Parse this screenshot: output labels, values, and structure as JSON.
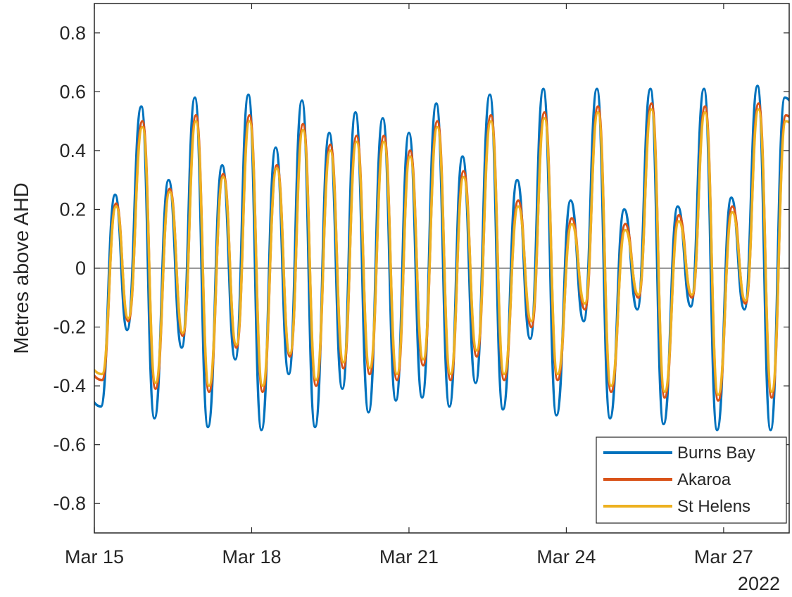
{
  "chart_data": {
    "type": "line",
    "ylabel": "Metres above AHD",
    "xlabel": "",
    "ylim": [
      -0.9,
      0.9
    ],
    "yticks": [
      -0.8,
      -0.6,
      -0.4,
      -0.2,
      0,
      0.2,
      0.4,
      0.6,
      0.8
    ],
    "ytick_labels": [
      "-0.8",
      "-0.6",
      "-0.4",
      "-0.2",
      "0",
      "0.2",
      "0.4",
      "0.6",
      "0.8"
    ],
    "xlim": [
      "2022-03-15T00:00",
      "2022-03-28T06:00"
    ],
    "xticks": [
      "2022-03-15",
      "2022-03-18",
      "2022-03-21",
      "2022-03-24",
      "2022-03-27"
    ],
    "xtick_labels": [
      "Mar 15",
      "Mar 18",
      "Mar 21",
      "Mar 24",
      "Mar 27"
    ],
    "year_label": "2022",
    "zero_line": true,
    "grid": false,
    "legend_position": "bottom-right",
    "series": [
      {
        "name": "Burns Bay",
        "color": "#0072BD",
        "x": [
          "2022-03-15T03:00",
          "2022-03-15T09:30",
          "2022-03-15T15:00",
          "2022-03-15T21:30",
          "2022-03-16T03:30",
          "2022-03-16T10:00",
          "2022-03-16T16:00",
          "2022-03-16T22:00",
          "2022-03-17T04:00",
          "2022-03-17T10:30",
          "2022-03-17T16:30",
          "2022-03-17T22:30",
          "2022-03-18T04:30",
          "2022-03-18T11:00",
          "2022-03-18T17:00",
          "2022-03-18T23:00",
          "2022-03-19T05:00",
          "2022-03-19T11:30",
          "2022-03-19T17:30",
          "2022-03-19T23:30",
          "2022-03-20T05:30",
          "2022-03-20T12:00",
          "2022-03-20T18:00",
          "2022-03-21T00:00",
          "2022-03-21T06:00",
          "2022-03-21T12:30",
          "2022-03-21T18:30",
          "2022-03-22T00:30",
          "2022-03-22T06:30",
          "2022-03-22T13:00",
          "2022-03-22T19:00",
          "2022-03-23T01:30",
          "2022-03-23T07:30",
          "2022-03-23T13:30",
          "2022-03-23T19:30",
          "2022-03-24T02:00",
          "2022-03-24T08:00",
          "2022-03-24T14:00",
          "2022-03-24T20:00",
          "2022-03-25T02:30",
          "2022-03-25T08:30",
          "2022-03-25T14:30",
          "2022-03-25T20:30",
          "2022-03-26T03:00",
          "2022-03-26T09:00",
          "2022-03-26T15:00",
          "2022-03-26T21:00",
          "2022-03-27T03:30",
          "2022-03-27T09:30",
          "2022-03-27T15:30",
          "2022-03-27T21:30",
          "2022-03-28T04:00"
        ],
        "y": [
          -0.47,
          0.25,
          -0.21,
          0.55,
          -0.51,
          0.3,
          -0.27,
          0.58,
          -0.54,
          0.35,
          -0.31,
          0.59,
          -0.55,
          0.41,
          -0.36,
          0.57,
          -0.54,
          0.46,
          -0.41,
          0.53,
          -0.49,
          0.51,
          -0.45,
          0.46,
          -0.44,
          0.56,
          -0.47,
          0.38,
          -0.39,
          0.59,
          -0.48,
          0.3,
          -0.24,
          0.61,
          -0.5,
          0.23,
          -0.18,
          0.61,
          -0.51,
          0.2,
          -0.14,
          0.61,
          -0.53,
          0.21,
          -0.13,
          0.61,
          -0.55,
          0.24,
          -0.14,
          0.62,
          -0.55,
          0.58
        ]
      },
      {
        "name": "Akaroa",
        "color": "#D95319",
        "x": [
          "2022-03-15T03:30",
          "2022-03-15T10:00",
          "2022-03-15T15:30",
          "2022-03-15T22:00",
          "2022-03-16T04:00",
          "2022-03-16T10:30",
          "2022-03-16T16:30",
          "2022-03-16T22:30",
          "2022-03-17T04:30",
          "2022-03-17T11:00",
          "2022-03-17T17:00",
          "2022-03-17T23:00",
          "2022-03-18T05:00",
          "2022-03-18T11:30",
          "2022-03-18T17:30",
          "2022-03-18T23:30",
          "2022-03-19T05:30",
          "2022-03-19T12:00",
          "2022-03-19T18:00",
          "2022-03-20T00:00",
          "2022-03-20T06:00",
          "2022-03-20T12:30",
          "2022-03-20T18:30",
          "2022-03-21T00:30",
          "2022-03-21T06:30",
          "2022-03-21T13:00",
          "2022-03-21T19:00",
          "2022-03-22T01:00",
          "2022-03-22T07:00",
          "2022-03-22T13:30",
          "2022-03-22T19:30",
          "2022-03-23T02:00",
          "2022-03-23T08:00",
          "2022-03-23T14:00",
          "2022-03-23T20:00",
          "2022-03-24T02:30",
          "2022-03-24T08:30",
          "2022-03-24T14:30",
          "2022-03-24T20:30",
          "2022-03-25T03:00",
          "2022-03-25T09:00",
          "2022-03-25T15:00",
          "2022-03-25T21:00",
          "2022-03-26T03:30",
          "2022-03-26T09:30",
          "2022-03-26T15:30",
          "2022-03-26T21:30",
          "2022-03-27T04:00",
          "2022-03-27T10:00",
          "2022-03-27T16:00",
          "2022-03-27T22:00",
          "2022-03-28T04:30"
        ],
        "y": [
          -0.38,
          0.22,
          -0.18,
          0.5,
          -0.41,
          0.27,
          -0.23,
          0.52,
          -0.42,
          0.32,
          -0.27,
          0.52,
          -0.42,
          0.35,
          -0.3,
          0.49,
          -0.4,
          0.42,
          -0.34,
          0.45,
          -0.36,
          0.45,
          -0.38,
          0.4,
          -0.33,
          0.5,
          -0.38,
          0.33,
          -0.3,
          0.52,
          -0.38,
          0.23,
          -0.2,
          0.53,
          -0.38,
          0.17,
          -0.14,
          0.55,
          -0.42,
          0.15,
          -0.1,
          0.56,
          -0.44,
          0.18,
          -0.1,
          0.55,
          -0.45,
          0.21,
          -0.12,
          0.56,
          -0.44,
          0.52
        ]
      },
      {
        "name": "St Helens",
        "color": "#EDB120",
        "x": [
          "2022-03-15T03:30",
          "2022-03-15T10:00",
          "2022-03-15T15:30",
          "2022-03-15T22:00",
          "2022-03-16T04:00",
          "2022-03-16T10:30",
          "2022-03-16T16:30",
          "2022-03-16T22:30",
          "2022-03-17T04:30",
          "2022-03-17T11:00",
          "2022-03-17T17:00",
          "2022-03-17T23:00",
          "2022-03-18T05:00",
          "2022-03-18T11:30",
          "2022-03-18T17:30",
          "2022-03-18T23:30",
          "2022-03-19T05:30",
          "2022-03-19T12:00",
          "2022-03-19T18:00",
          "2022-03-20T00:00",
          "2022-03-20T06:00",
          "2022-03-20T12:30",
          "2022-03-20T18:30",
          "2022-03-21T00:30",
          "2022-03-21T06:30",
          "2022-03-21T13:00",
          "2022-03-21T19:00",
          "2022-03-22T01:00",
          "2022-03-22T07:00",
          "2022-03-22T13:30",
          "2022-03-22T19:30",
          "2022-03-23T02:00",
          "2022-03-23T08:00",
          "2022-03-23T14:00",
          "2022-03-23T20:00",
          "2022-03-24T02:30",
          "2022-03-24T08:30",
          "2022-03-24T14:30",
          "2022-03-24T20:30",
          "2022-03-25T03:00",
          "2022-03-25T09:00",
          "2022-03-25T15:00",
          "2022-03-25T21:00",
          "2022-03-26T03:30",
          "2022-03-26T09:30",
          "2022-03-26T15:30",
          "2022-03-26T21:30",
          "2022-03-27T04:00",
          "2022-03-27T10:00",
          "2022-03-27T16:00",
          "2022-03-27T22:00",
          "2022-03-28T04:30"
        ],
        "y": [
          -0.36,
          0.21,
          -0.17,
          0.48,
          -0.39,
          0.26,
          -0.22,
          0.5,
          -0.4,
          0.31,
          -0.26,
          0.5,
          -0.4,
          0.34,
          -0.29,
          0.47,
          -0.38,
          0.4,
          -0.32,
          0.43,
          -0.34,
          0.43,
          -0.36,
          0.38,
          -0.31,
          0.48,
          -0.36,
          0.31,
          -0.28,
          0.5,
          -0.36,
          0.21,
          -0.18,
          0.51,
          -0.36,
          0.15,
          -0.12,
          0.53,
          -0.4,
          0.13,
          -0.09,
          0.54,
          -0.42,
          0.16,
          -0.09,
          0.53,
          -0.43,
          0.19,
          -0.11,
          0.54,
          -0.42,
          0.5
        ]
      }
    ]
  }
}
